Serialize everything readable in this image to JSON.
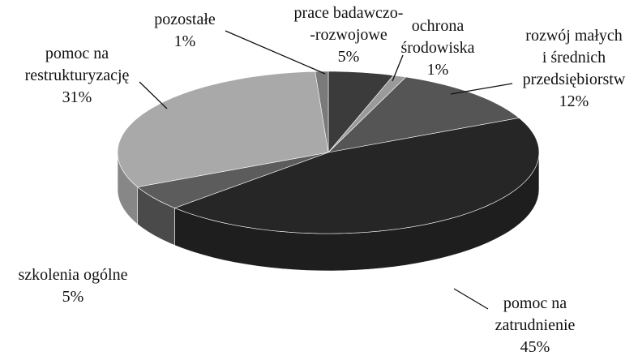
{
  "chart_data": {
    "type": "pie3d",
    "categories": [
      "prace badawczo-\n-rozwojowe",
      "ochrona\nśrodowiska",
      "rozwój małych\ni średnich\nprzedsiębiorstw",
      "pomoc na\nzatrudnienie",
      "szkolenia ogólne",
      "pomoc na\nrestrukturyzację",
      "pozostałe"
    ],
    "values": [
      5,
      1,
      12,
      45,
      5,
      31,
      1
    ],
    "value_labels": [
      "5%",
      "1%",
      "12%",
      "45%",
      "5%",
      "31%",
      "1%"
    ],
    "colors": [
      "#3b3b3b",
      "#9a9a9a",
      "#555555",
      "#262626",
      "#5c5c5c",
      "#a9a9a9",
      "#7a7a7a"
    ]
  }
}
